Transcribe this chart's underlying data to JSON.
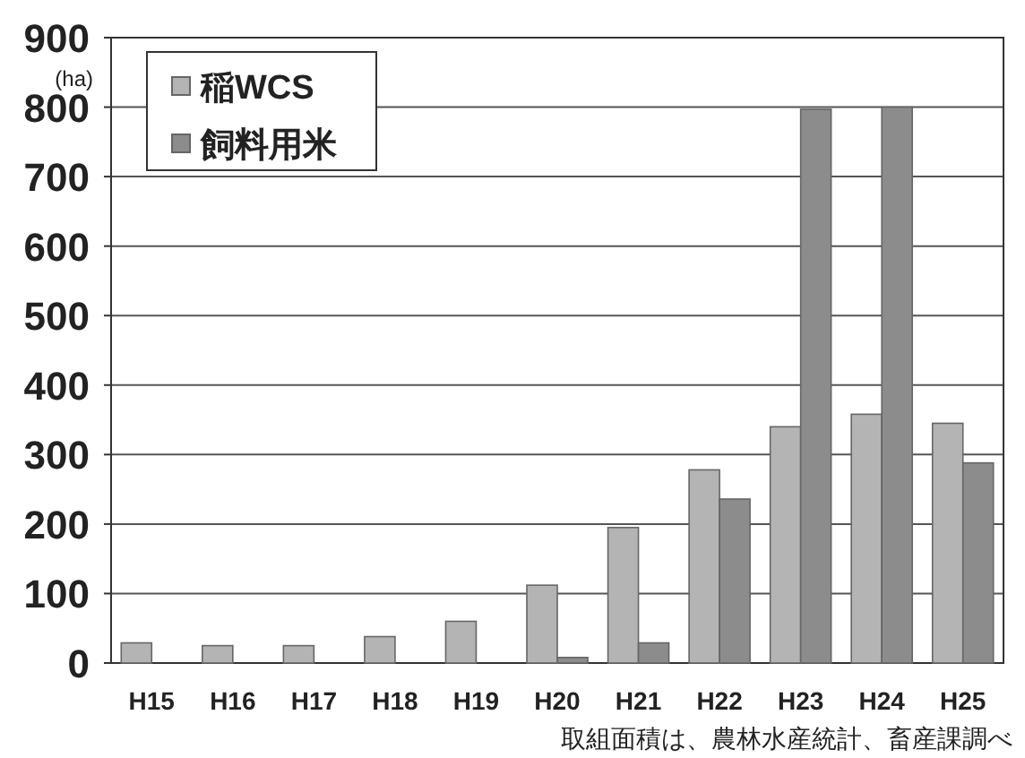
{
  "chart_data": {
    "type": "bar",
    "ylabel": "(ha)",
    "categories": [
      "H15",
      "H16",
      "H17",
      "H18",
      "H19",
      "H20",
      "H21",
      "H22",
      "H23",
      "H24",
      "H25"
    ],
    "series": [
      {
        "name": "稲WCS",
        "color": "#b4b4b4",
        "values": [
          29,
          25,
          25,
          38,
          60,
          112,
          195,
          278,
          340,
          358,
          345
        ]
      },
      {
        "name": "飼料用米",
        "color": "#8c8c8c",
        "values": [
          0,
          0,
          0,
          0,
          0,
          8,
          29,
          236,
          797,
          800,
          288
        ]
      }
    ],
    "ylim": [
      0,
      900
    ],
    "yticks": [
      0,
      100,
      200,
      300,
      400,
      500,
      600,
      700,
      800,
      900
    ],
    "grid": "y",
    "legend": "top left",
    "annotations": [
      "取組面積は、農林水産統計、畜産課調べ"
    ]
  }
}
